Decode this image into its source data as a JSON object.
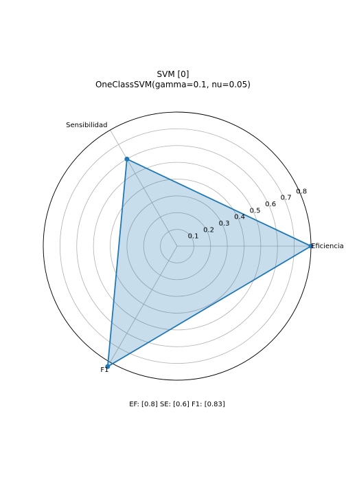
{
  "title_line1": "SVM [0]",
  "title_line2": "OneClassSVM(gamma=0.1, nu=0.05)",
  "footer": "EF: [0.8] SE: [0.6] F1: [0.83]",
  "chart_data": {
    "type": "radar",
    "axes": [
      "Eficiencia",
      "Sensibilidad",
      "F1"
    ],
    "values": [
      0.8,
      0.6,
      0.83
    ],
    "radial_ticks": [
      "0.1",
      "0.2",
      "0.3",
      "0.4",
      "0.5",
      "0.6",
      "0.7",
      "0.8"
    ],
    "rlim": [
      0,
      0.8
    ],
    "grid": true,
    "line_color": "#1f77b4",
    "fill_color": "#1f77b4"
  }
}
